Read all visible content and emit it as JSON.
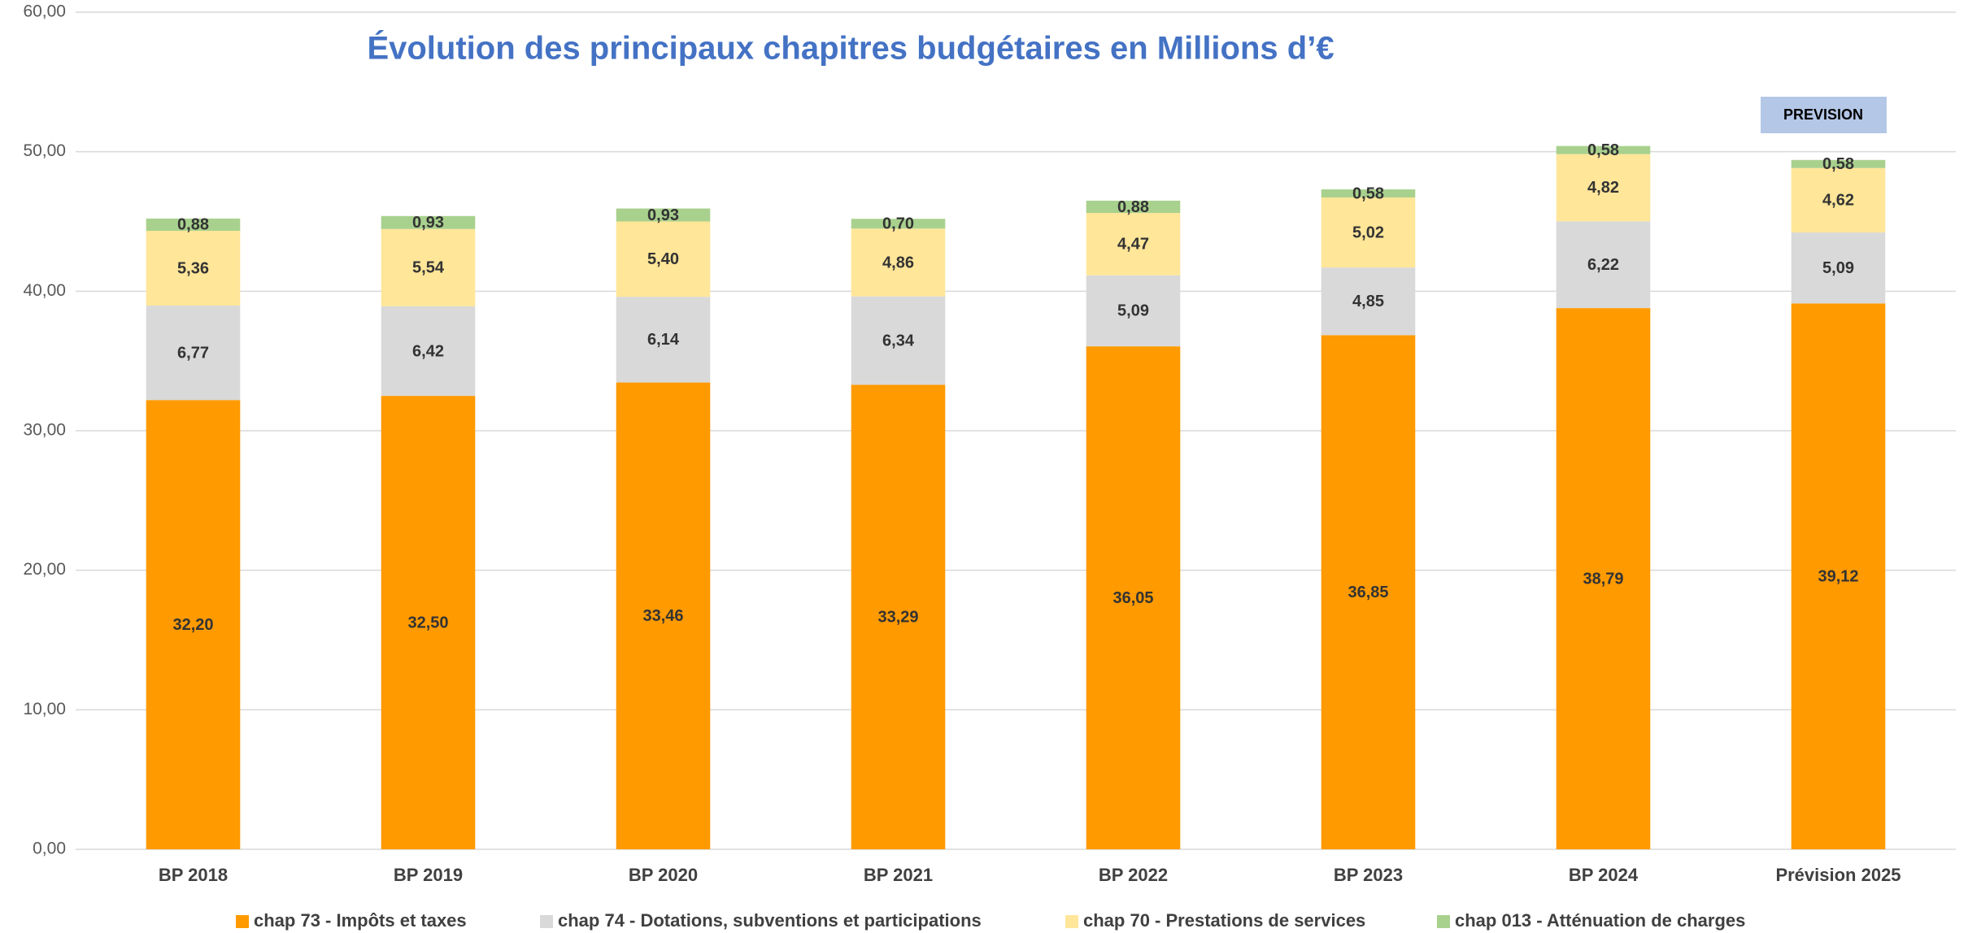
{
  "chart_data": {
    "type": "stacked_bar",
    "title": "Évolution des principaux chapitres budgétaires en Millions d’€",
    "annotation": "PREVISION",
    "categories": [
      "BP 2018",
      "BP 2019",
      "BP 2020",
      "BP 2021",
      "BP 2022",
      "BP 2023",
      "BP 2024",
      "Prévision 2025"
    ],
    "series": [
      {
        "name": "chap 73 - Impôts et taxes",
        "color": "#ff9a00",
        "values": [
          32.2,
          32.5,
          33.46,
          33.29,
          36.05,
          36.85,
          38.79,
          39.12
        ],
        "value_labels": [
          "32,20",
          "32,50",
          "33,46",
          "33,29",
          "36,05",
          "36,85",
          "38,79",
          "39,12"
        ]
      },
      {
        "name": "chap 74 - Dotations, subventions et participations",
        "color": "#d9d9d9",
        "values": [
          6.77,
          6.42,
          6.14,
          6.34,
          5.09,
          4.85,
          6.22,
          5.09
        ],
        "value_labels": [
          "6,77",
          "6,42",
          "6,14",
          "6,34",
          "5,09",
          "4,85",
          "6,22",
          "5,09"
        ]
      },
      {
        "name": "chap 70 - Prestations de services",
        "color": "#ffe699",
        "values": [
          5.36,
          5.54,
          5.4,
          4.86,
          4.47,
          5.02,
          4.82,
          4.62
        ],
        "value_labels": [
          "5,36",
          "5,54",
          "5,40",
          "4,86",
          "4,47",
          "5,02",
          "4,82",
          "4,62"
        ]
      },
      {
        "name": "chap 013 - Atténuation de charges",
        "color": "#a9d18e",
        "values": [
          0.88,
          0.93,
          0.93,
          0.7,
          0.88,
          0.58,
          0.58,
          0.58
        ],
        "value_labels": [
          "0,88",
          "0,93",
          "0,93",
          "0,70",
          "0,88",
          "0,58",
          "0,58",
          "0,58"
        ]
      }
    ],
    "ylim": [
      0,
      60
    ],
    "yticks": [
      {
        "value": 0,
        "label": "0,00"
      },
      {
        "value": 10,
        "label": "10,00"
      },
      {
        "value": 20,
        "label": "20,00"
      },
      {
        "value": 30,
        "label": "30,00"
      },
      {
        "value": 40,
        "label": "40,00"
      },
      {
        "value": 50,
        "label": "50,00"
      },
      {
        "value": 60,
        "label": "60,00"
      }
    ],
    "grid": true,
    "legend": "bottom"
  }
}
